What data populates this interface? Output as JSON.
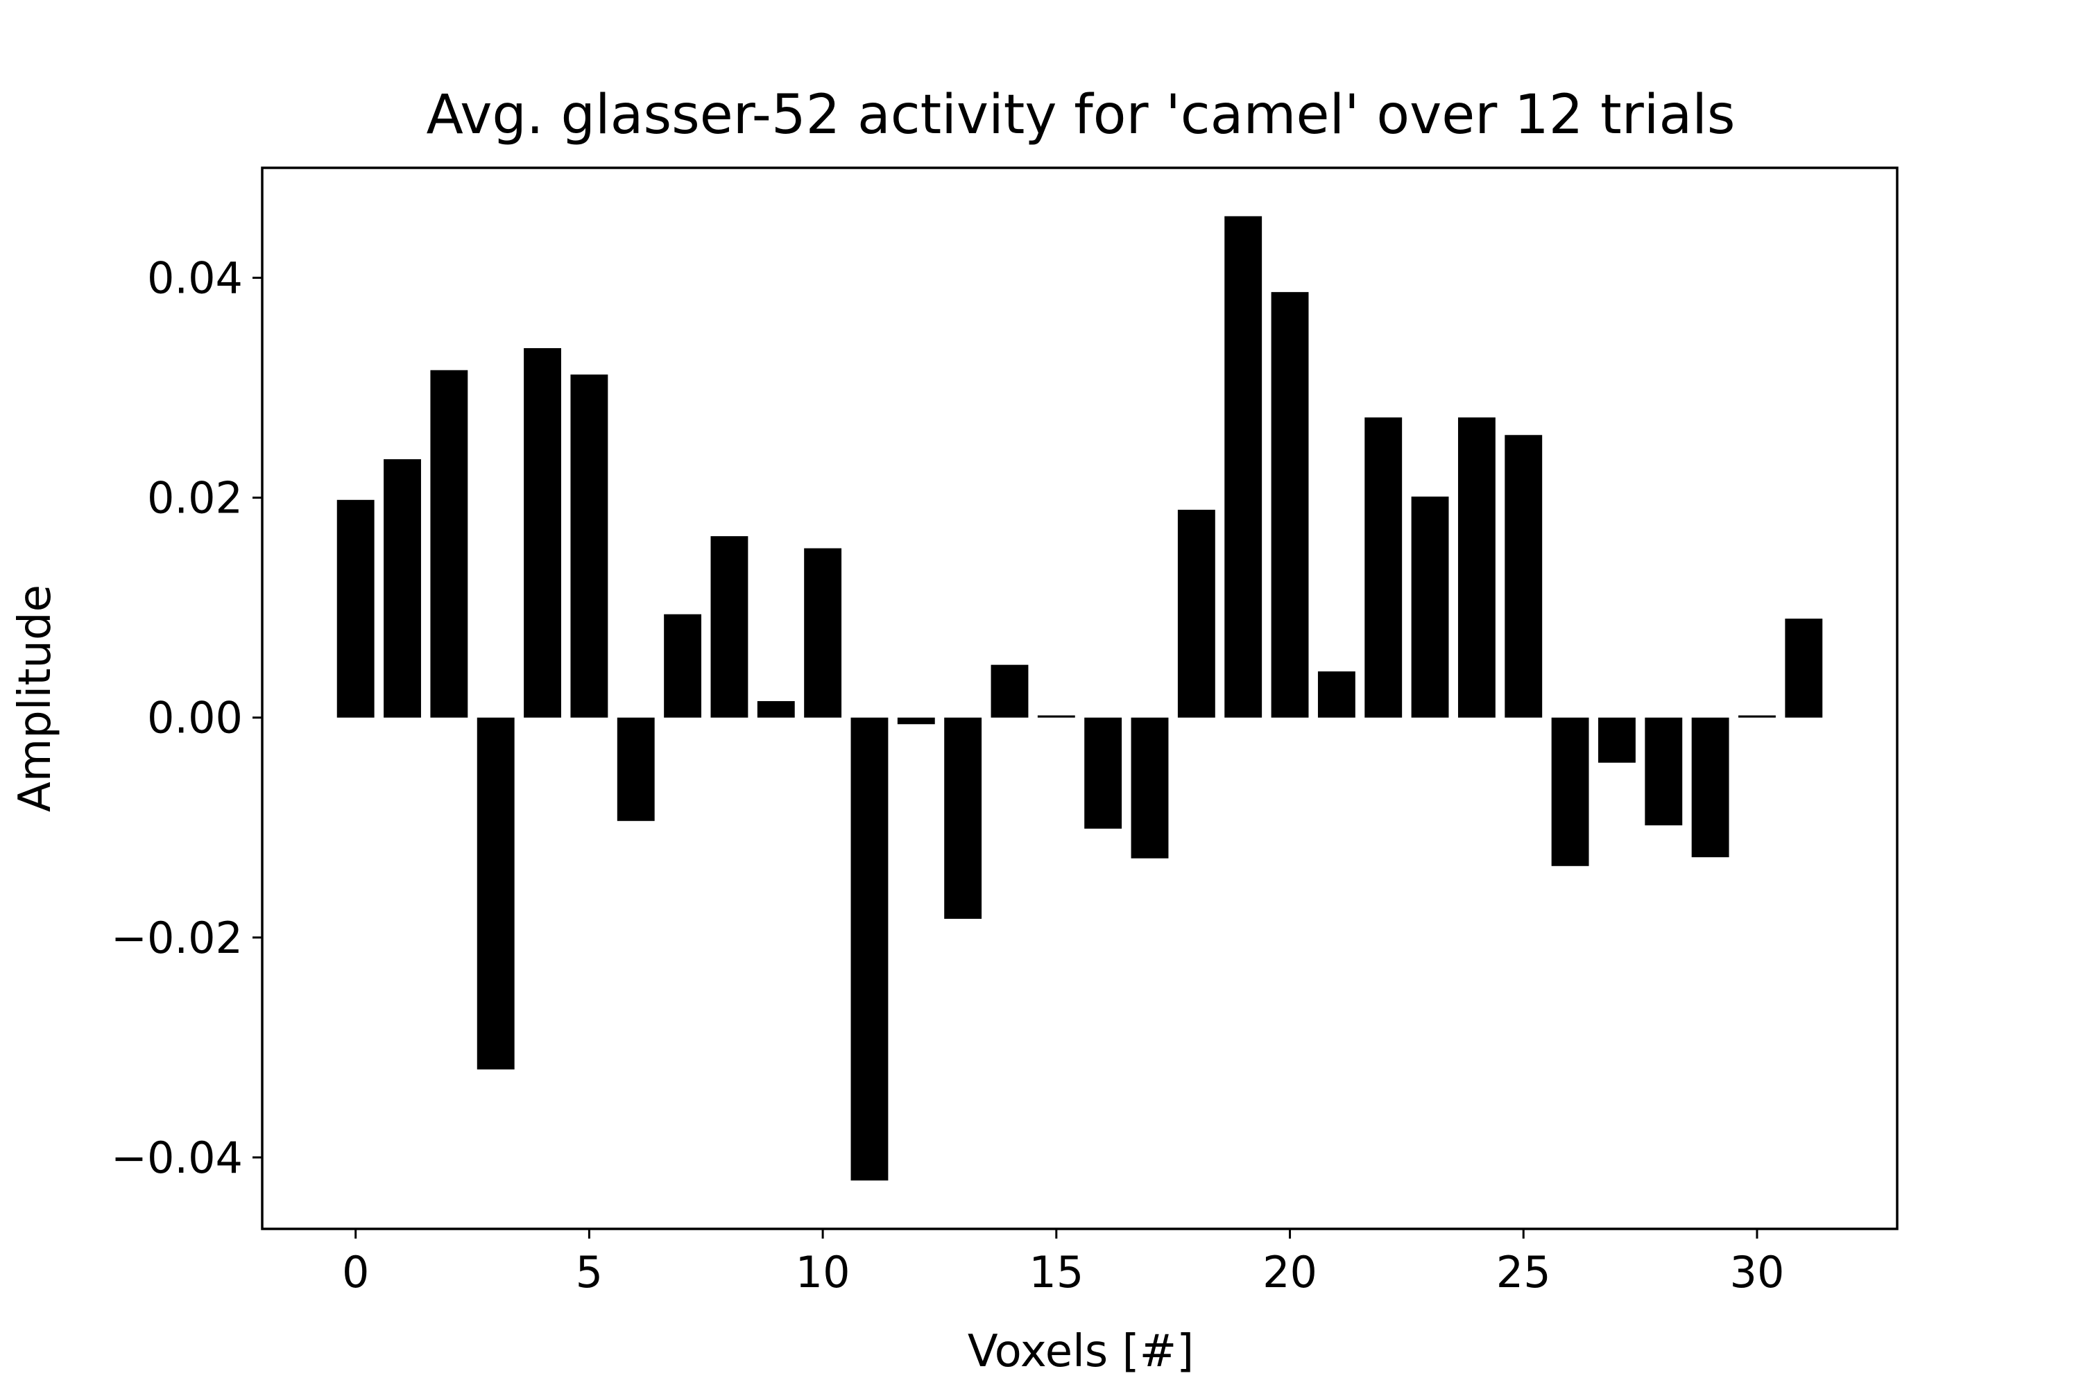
{
  "chart_data": {
    "type": "bar",
    "title": "Avg. glasser-52 activity for 'camel' over 12 trials",
    "xlabel": "Voxels [#]",
    "ylabel": "Amplitude",
    "x": [
      0,
      1,
      2,
      3,
      4,
      5,
      6,
      7,
      8,
      9,
      10,
      11,
      12,
      13,
      14,
      15,
      16,
      17,
      18,
      19,
      20,
      21,
      22,
      23,
      24,
      25,
      26,
      27,
      28,
      29,
      30,
      31
    ],
    "values": [
      0.0198,
      0.0235,
      0.0316,
      -0.032,
      0.0336,
      0.0312,
      -0.0094,
      0.0094,
      0.0165,
      0.0015,
      0.0154,
      -0.0421,
      -0.0006,
      -0.0183,
      0.0048,
      0.0002,
      -0.0101,
      -0.0128,
      0.0189,
      0.0456,
      0.0387,
      0.0042,
      0.0273,
      0.0201,
      0.0273,
      0.0257,
      -0.0135,
      -0.0041,
      -0.0098,
      -0.0127,
      0.0002,
      0.009
    ],
    "xlim": [
      -2,
      33
    ],
    "ylim": [
      -0.0465,
      0.05
    ],
    "xticks": [
      0,
      5,
      10,
      15,
      20,
      25,
      30
    ],
    "xtick_labels": [
      "0",
      "5",
      "10",
      "15",
      "20",
      "25",
      "30"
    ],
    "yticks": [
      0.04,
      0.02,
      0.0,
      -0.02,
      -0.04
    ],
    "ytick_labels": [
      "0.04",
      "0.02",
      "0.00",
      "−0.02",
      "−0.04"
    ],
    "bar_color": "#000000",
    "grid": false,
    "legend": "none"
  }
}
